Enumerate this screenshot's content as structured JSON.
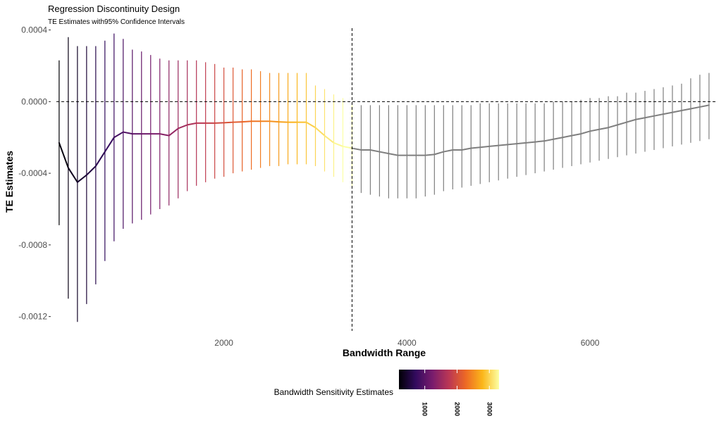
{
  "chart_data": {
    "type": "line",
    "title": "Regression Discontinuity Design",
    "subtitle": "TE Estimates with95% Confidence Intervals",
    "xlabel": "Bandwidth Range",
    "ylabel": "TE Estimates",
    "xlim": [
      170,
      7370
    ],
    "ylim": [
      -0.00128,
      0.00041
    ],
    "x_ticks": [
      2000,
      4000,
      6000
    ],
    "x_tick_labels": [
      "2000",
      "4000",
      "6000"
    ],
    "y_ticks": [
      0.0004,
      0.0,
      -0.0004,
      -0.0008,
      -0.0012
    ],
    "y_tick_labels": [
      "0.0004",
      "0.0000",
      "-0.0004",
      "-0.0008",
      "-0.0012"
    ],
    "reference_lines": {
      "hline_y": 0.0,
      "vline_x": 3400
    },
    "grid": false,
    "cutoff_bandwidth": 3400,
    "colored_color_range": [
      200,
      3300
    ],
    "colored_color_stops": [
      "#000004",
      "#320a5e",
      "#781c6d",
      "#bb3754",
      "#ed6925",
      "#fbb61a",
      "#fcffa4"
    ],
    "beyond_cutoff_color": "#7f7f7f",
    "x": [
      200,
      300,
      400,
      500,
      600,
      700,
      800,
      900,
      1000,
      1100,
      1200,
      1300,
      1400,
      1500,
      1600,
      1700,
      1800,
      1900,
      2000,
      2100,
      2200,
      2300,
      2400,
      2500,
      2600,
      2700,
      2800,
      2900,
      3000,
      3100,
      3200,
      3300,
      3400,
      3500,
      3600,
      3700,
      3800,
      3900,
      4000,
      4100,
      4200,
      4300,
      4400,
      4500,
      4600,
      4700,
      4800,
      4900,
      5000,
      5100,
      5200,
      5300,
      5400,
      5500,
      5600,
      5700,
      5800,
      5900,
      6000,
      6100,
      6200,
      6300,
      6400,
      6500,
      6600,
      6700,
      6800,
      6900,
      7000,
      7100,
      7200,
      7300
    ],
    "te_estimates": [
      -0.00023,
      -0.00037,
      -0.00045,
      -0.00041,
      -0.00036,
      -0.00028,
      -0.0002,
      -0.00017,
      -0.00018,
      -0.00018,
      -0.00018,
      -0.00018,
      -0.00019,
      -0.00015,
      -0.00013,
      -0.00012,
      -0.00012,
      -0.00012,
      -0.000118,
      -0.000115,
      -0.000113,
      -0.00011,
      -0.00011,
      -0.00011,
      -0.000113,
      -0.000115,
      -0.000115,
      -0.000115,
      -0.000145,
      -0.00019,
      -0.00023,
      -0.00025,
      -0.00026,
      -0.00027,
      -0.00027,
      -0.00028,
      -0.00029,
      -0.0003,
      -0.0003,
      -0.0003,
      -0.0003,
      -0.000295,
      -0.00028,
      -0.00027,
      -0.00027,
      -0.00026,
      -0.000255,
      -0.00025,
      -0.000245,
      -0.00024,
      -0.000235,
      -0.00023,
      -0.000225,
      -0.00022,
      -0.00021,
      -0.0002,
      -0.00019,
      -0.00018,
      -0.000165,
      -0.000155,
      -0.000145,
      -0.00013,
      -0.000115,
      -0.0001,
      -9e-05,
      -8e-05,
      -7e-05,
      -6e-05,
      -5e-05,
      -4e-05,
      -3e-05,
      -2e-05
    ],
    "ci_lower": [
      -0.00069,
      -0.0011,
      -0.00123,
      -0.00113,
      -0.00102,
      -0.00089,
      -0.00078,
      -0.00071,
      -0.00068,
      -0.00066,
      -0.00063,
      -0.0006,
      -0.00058,
      -0.00054,
      -0.0005,
      -0.00047,
      -0.00045,
      -0.00043,
      -0.00042,
      -0.0004,
      -0.00039,
      -0.00038,
      -0.00037,
      -0.00036,
      -0.00036,
      -0.00035,
      -0.00035,
      -0.00035,
      -0.00036,
      -0.00039,
      -0.00042,
      -0.00045,
      -0.00047,
      -0.00051,
      -0.00052,
      -0.00053,
      -0.00054,
      -0.00054,
      -0.00054,
      -0.00054,
      -0.00053,
      -0.00052,
      -0.0005,
      -0.00049,
      -0.00048,
      -0.00047,
      -0.00046,
      -0.00045,
      -0.00044,
      -0.00043,
      -0.00042,
      -0.00041,
      -0.0004,
      -0.00039,
      -0.00038,
      -0.00037,
      -0.00036,
      -0.00035,
      -0.00034,
      -0.00033,
      -0.00032,
      -0.00031,
      -0.0003,
      -0.00029,
      -0.00028,
      -0.00027,
      -0.00026,
      -0.00025,
      -0.00024,
      -0.00023,
      -0.00022,
      -0.00021
    ],
    "ci_upper": [
      0.00023,
      0.00036,
      0.00031,
      0.00031,
      0.00031,
      0.00034,
      0.00038,
      0.00035,
      0.00029,
      0.00028,
      0.00026,
      0.00024,
      0.00023,
      0.00023,
      0.00023,
      0.00023,
      0.00022,
      0.00021,
      0.00019,
      0.00019,
      0.00018,
      0.00018,
      0.00017,
      0.00016,
      0.00016,
      0.00016,
      0.00016,
      0.00016,
      9e-05,
      7e-05,
      4e-05,
      2e-05,
      -2e-05,
      -2e-05,
      -2e-05,
      -2e-05,
      -2e-05,
      -2e-05,
      -2e-05,
      -2e-05,
      -2e-05,
      -2e-05,
      -2e-05,
      -2e-05,
      -2e-05,
      -2e-05,
      -1e-05,
      -1e-05,
      -1e-05,
      -1e-05,
      -1e-05,
      -1e-05,
      -1e-05,
      -1e-05,
      0.0,
      0.0,
      0.0,
      1e-05,
      2e-05,
      2e-05,
      3e-05,
      3e-05,
      5e-05,
      5e-05,
      6e-05,
      7e-05,
      8e-05,
      9e-05,
      0.0001,
      0.00013,
      0.00015,
      0.00016
    ]
  },
  "legend": {
    "title": "Bandwidth Sensitivity Estimates",
    "range": [
      200,
      3300
    ],
    "tick_values": [
      1000,
      2000,
      3000
    ],
    "tick_labels": [
      "1000",
      "2000",
      "3000"
    ],
    "placement": "bottom"
  }
}
